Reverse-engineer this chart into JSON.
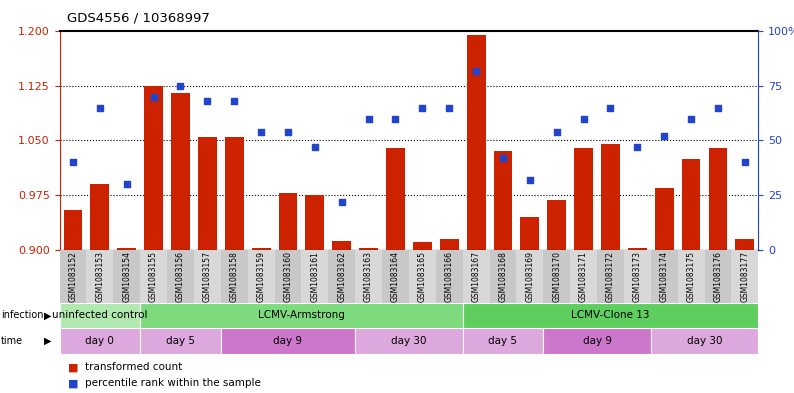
{
  "title": "GDS4556 / 10368997",
  "samples": [
    "GSM1083152",
    "GSM1083153",
    "GSM1083154",
    "GSM1083155",
    "GSM1083156",
    "GSM1083157",
    "GSM1083158",
    "GSM1083159",
    "GSM1083160",
    "GSM1083161",
    "GSM1083162",
    "GSM1083163",
    "GSM1083164",
    "GSM1083165",
    "GSM1083166",
    "GSM1083167",
    "GSM1083168",
    "GSM1083169",
    "GSM1083170",
    "GSM1083171",
    "GSM1083172",
    "GSM1083173",
    "GSM1083174",
    "GSM1083175",
    "GSM1083176",
    "GSM1083177"
  ],
  "bar_values": [
    0.955,
    0.99,
    0.902,
    1.125,
    1.115,
    1.055,
    1.055,
    0.902,
    0.978,
    0.975,
    0.912,
    0.902,
    1.04,
    0.91,
    0.915,
    1.195,
    1.035,
    0.945,
    0.968,
    1.04,
    1.045,
    0.902,
    0.985,
    1.025,
    1.04,
    0.915
  ],
  "dot_values": [
    40,
    65,
    30,
    70,
    75,
    68,
    68,
    54,
    54,
    47,
    22,
    60,
    60,
    65,
    65,
    82,
    42,
    32,
    54,
    60,
    65,
    47,
    52,
    60,
    65,
    40
  ],
  "infection_groups": [
    {
      "label": "uninfected control",
      "start": 0,
      "end": 3,
      "color": "#b0e8b0"
    },
    {
      "label": "LCMV-Armstrong",
      "start": 3,
      "end": 15,
      "color": "#7dda7d"
    },
    {
      "label": "LCMV-Clone 13",
      "start": 15,
      "end": 26,
      "color": "#5ecf5e"
    }
  ],
  "time_groups": [
    {
      "label": "day 0",
      "start": 0,
      "end": 3,
      "color": "#dda8dd"
    },
    {
      "label": "day 5",
      "start": 3,
      "end": 6,
      "color": "#dda8dd"
    },
    {
      "label": "day 9",
      "start": 6,
      "end": 11,
      "color": "#cc77cc"
    },
    {
      "label": "day 30",
      "start": 11,
      "end": 15,
      "color": "#dda8dd"
    },
    {
      "label": "day 5",
      "start": 15,
      "end": 18,
      "color": "#dda8dd"
    },
    {
      "label": "day 9",
      "start": 18,
      "end": 22,
      "color": "#cc77cc"
    },
    {
      "label": "day 30",
      "start": 22,
      "end": 26,
      "color": "#dda8dd"
    }
  ],
  "ylim_left": [
    0.9,
    1.2
  ],
  "ylim_right": [
    0,
    100
  ],
  "yticks_left": [
    0.9,
    0.975,
    1.05,
    1.125,
    1.2
  ],
  "yticks_right": [
    0,
    25,
    50,
    75,
    100
  ],
  "bar_color": "#cc2200",
  "dot_color": "#2244cc",
  "label_bg_even": "#c8c8c8",
  "label_bg_odd": "#d8d8d8",
  "background_color": "#ffffff"
}
